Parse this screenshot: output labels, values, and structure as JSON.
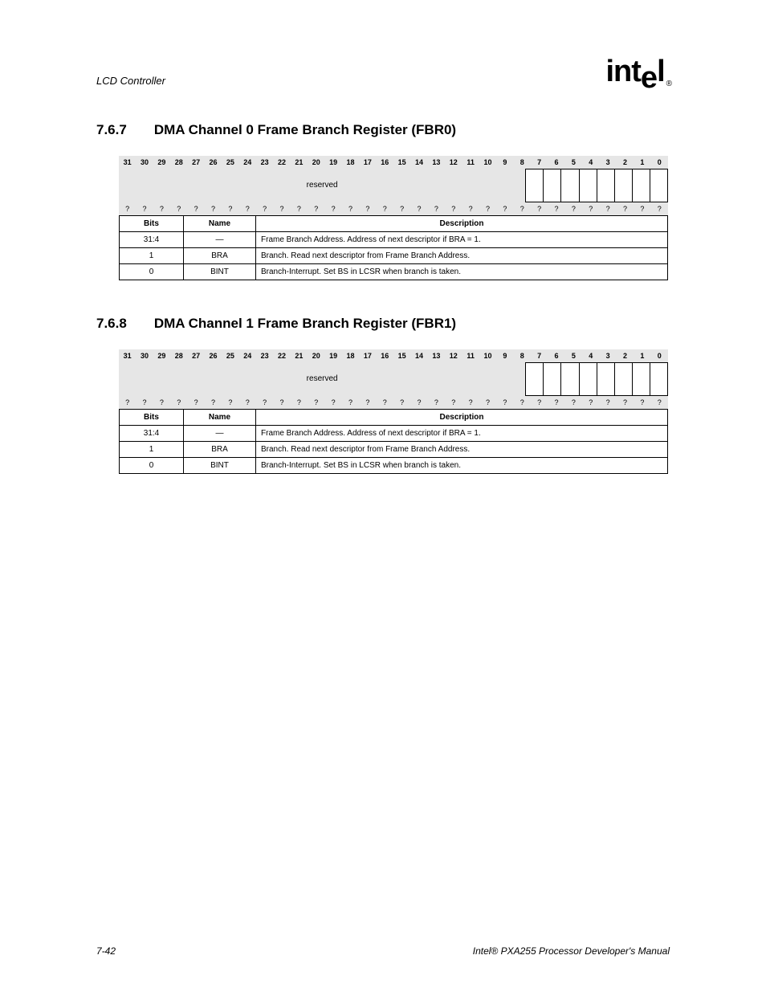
{
  "header": {
    "chapter": "LCD Controller",
    "logo_text": "intel",
    "reg_mark": "®"
  },
  "sections": [
    {
      "num": "7.6.7",
      "title": "DMA Channel 0 Frame Branch Register (FBR0)"
    },
    {
      "num": "7.6.8",
      "title": "DMA Channel 1 Frame Branch Register (FBR1)"
    }
  ],
  "register": {
    "bit_labels": [
      "31",
      "30",
      "29",
      "28",
      "27",
      "26",
      "25",
      "24",
      "23",
      "22",
      "21",
      "20",
      "19",
      "18",
      "17",
      "16",
      "15",
      "14",
      "13",
      "12",
      "11",
      "10",
      "9",
      "8",
      "7",
      "6",
      "5",
      "4",
      "3",
      "2",
      "1",
      "0"
    ],
    "reserved_span": 24,
    "reserved_label": "reserved",
    "addr_cells": 8,
    "reset_labels": [
      "?",
      "?",
      "?",
      "?",
      "?",
      "?",
      "?",
      "?",
      "?",
      "?",
      "?",
      "?",
      "?",
      "?",
      "?",
      "?",
      "?",
      "?",
      "?",
      "?",
      "?",
      "?",
      "?",
      "?",
      "?",
      "?",
      "?",
      "?",
      "?",
      "?",
      "?",
      "?"
    ],
    "colors": {
      "shade": "#e6e6e6",
      "border": "#000000",
      "bg": "#ffffff"
    }
  },
  "desc": {
    "headers": [
      "Bits",
      "Name",
      "Description"
    ],
    "rows": [
      [
        "31:4",
        "—",
        "Frame Branch Address. Address of next descriptor if BRA = 1."
      ],
      [
        "1",
        "BRA",
        "Branch. Read next descriptor from Frame Branch Address."
      ],
      [
        "0",
        "BINT",
        "Branch-Interrupt. Set BS in LCSR when branch is taken."
      ]
    ],
    "col_widths": [
      "80px",
      "90px",
      "auto"
    ]
  },
  "footer": {
    "left": "7-42",
    "right": "Intel® PXA255 Processor Developer's Manual"
  }
}
